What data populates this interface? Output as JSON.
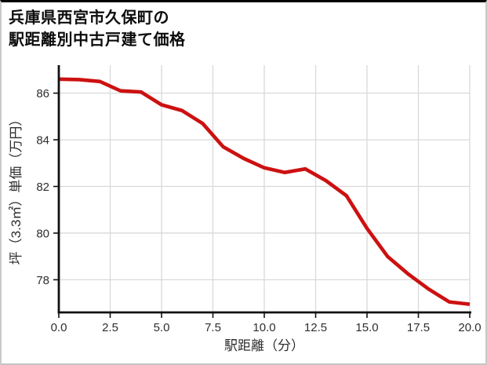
{
  "page": {
    "title_line1": "兵庫県西宮市久保町の",
    "title_line2": "駅距離別中古戸建て価格"
  },
  "chart_data": {
    "type": "line",
    "title": "兵庫県西宮市久保町の駅距離別中古戸建て価格",
    "xlabel": "駅距離（分）",
    "ylabel": "坪（3.3㎡）単価（万円）",
    "x": [
      0,
      1,
      2,
      3,
      4,
      5,
      6,
      7,
      8,
      9,
      10,
      11,
      12,
      13,
      14,
      15,
      16,
      17,
      18,
      19,
      20
    ],
    "y": [
      86.6,
      86.58,
      86.5,
      86.1,
      86.05,
      85.5,
      85.25,
      84.7,
      83.7,
      83.2,
      82.8,
      82.6,
      82.75,
      82.25,
      81.6,
      80.2,
      79.0,
      78.25,
      77.6,
      77.05,
      76.95
    ],
    "xlim": [
      0,
      20
    ],
    "ylim": [
      76.6,
      87.2
    ],
    "xtick_labels": [
      "0.0",
      "2.5",
      "5.0",
      "7.5",
      "10.0",
      "12.5",
      "15.0",
      "17.5",
      "20.0"
    ],
    "ytick_labels": [
      "78",
      "80",
      "82",
      "84",
      "86"
    ],
    "grid": true,
    "legend": "none",
    "line_color": "#cc1111",
    "grid_color": "#d9d9d9",
    "axis_color": "#111111",
    "tick_text_color": "#2e2e2e"
  }
}
